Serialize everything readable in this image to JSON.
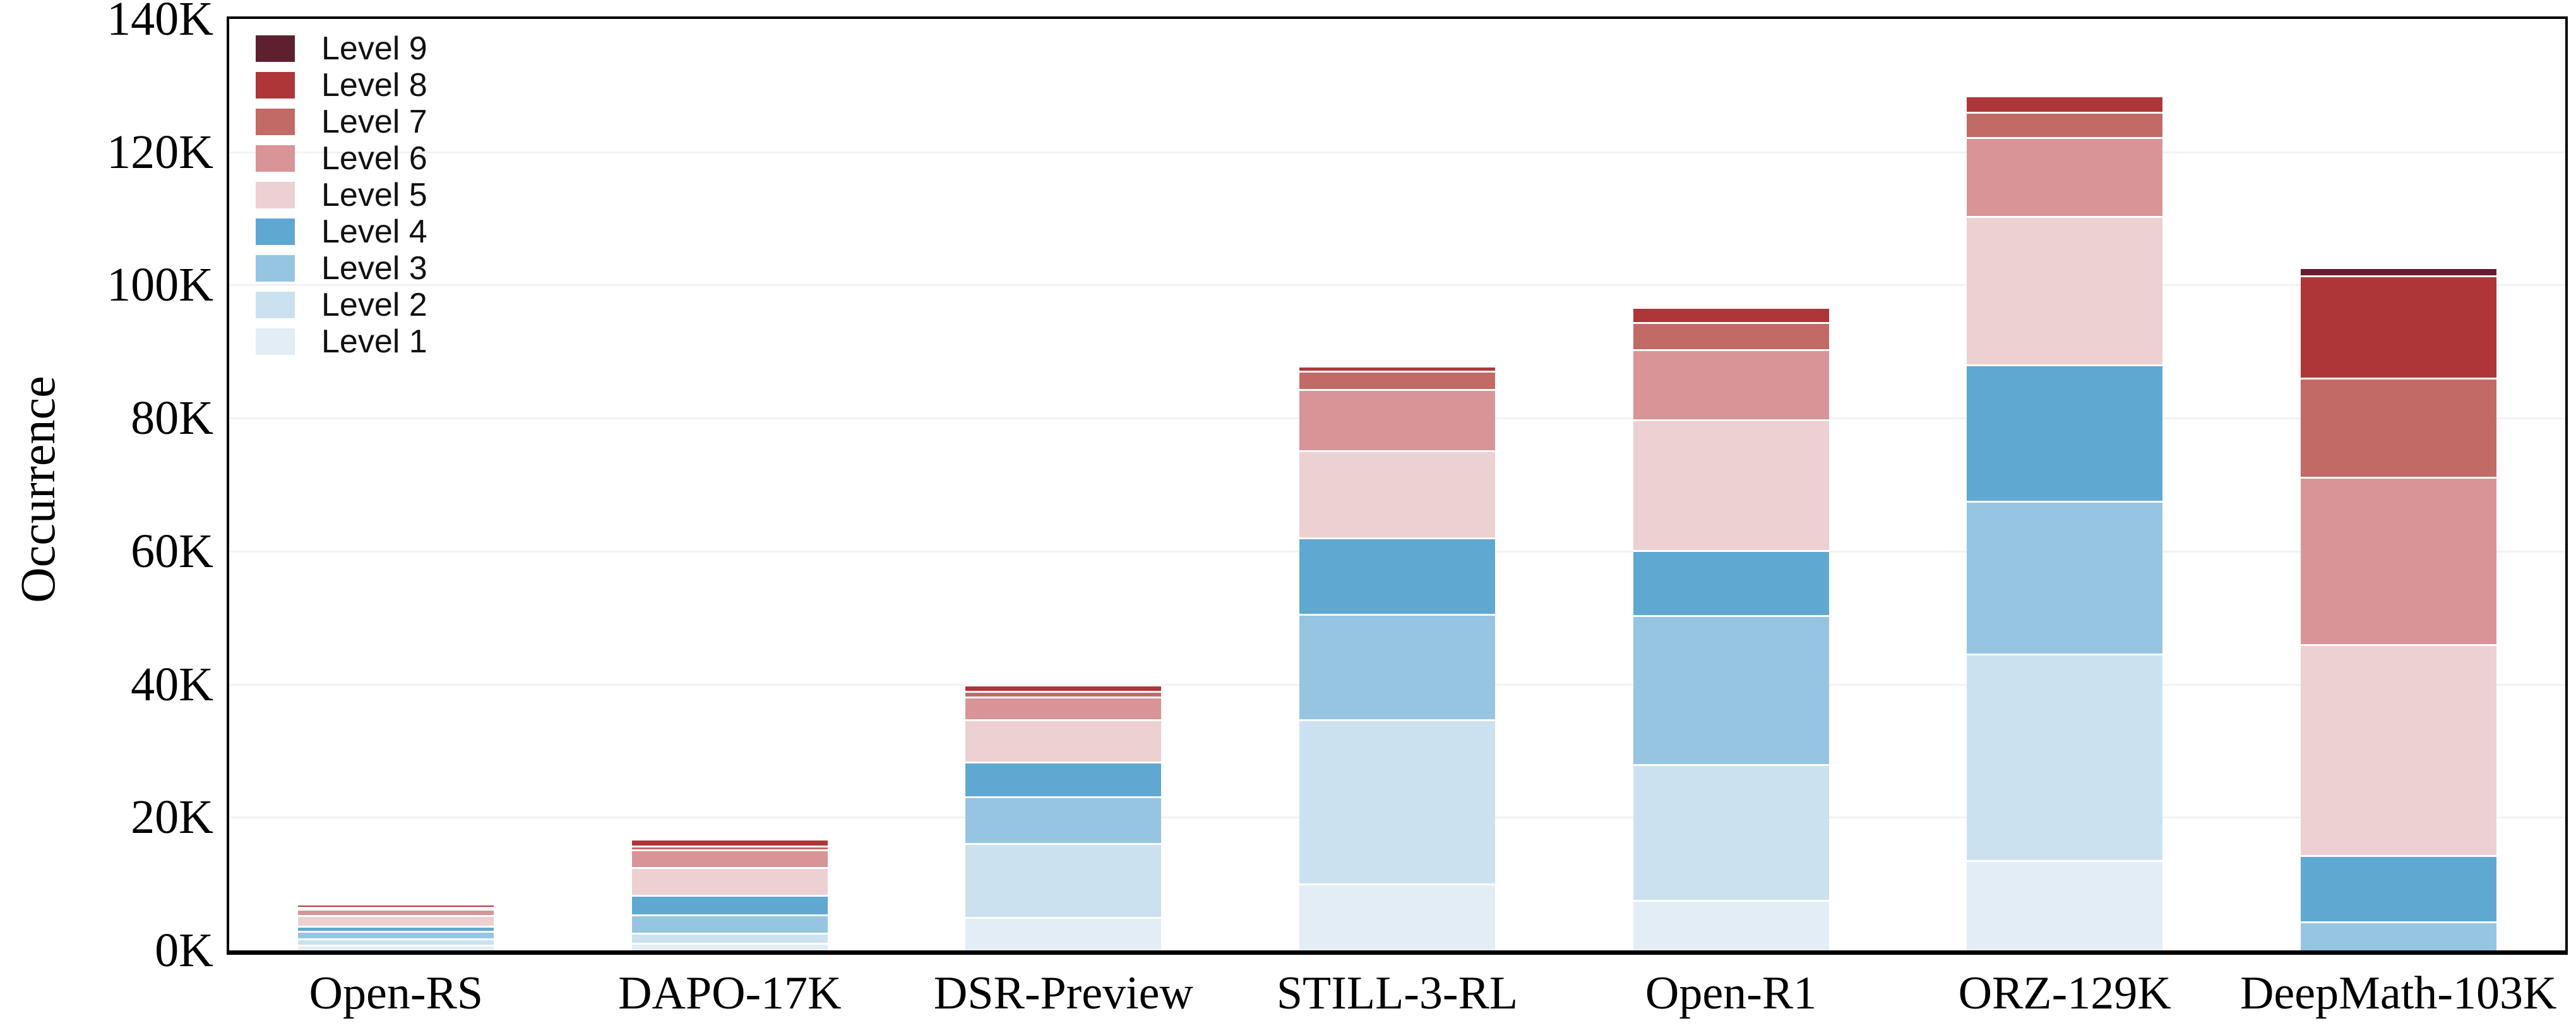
{
  "figure": {
    "ylabel": "Occurrence"
  },
  "chart_data": {
    "type": "bar",
    "stacked": true,
    "title": "",
    "xlabel": "",
    "ylabel": "Occurrence",
    "unit": "K",
    "ylim": [
      0,
      140
    ],
    "ytick_step": 20,
    "yticks": [
      "0K",
      "20K",
      "40K",
      "60K",
      "80K",
      "100K",
      "120K",
      "140K"
    ],
    "grid": "horizontal",
    "legend_position": "upper-left",
    "legend_order_top_to_bottom": [
      "Level 9",
      "Level 8",
      "Level 7",
      "Level 6",
      "Level 5",
      "Level 4",
      "Level 3",
      "Level 2",
      "Level 1"
    ],
    "categories": [
      "Open-RS",
      "DAPO-17K",
      "DSR-Preview",
      "STILL-3-RL",
      "Open-R1",
      "ORZ-129K",
      "DeepMath-103K"
    ],
    "series": [
      {
        "name": "Level 1",
        "color": "#e2edf6",
        "values": [
          0.9,
          1.1,
          5.0,
          10.1,
          7.6,
          13.6,
          0
        ]
      },
      {
        "name": "Level 2",
        "color": "#cbe1ef",
        "values": [
          0.9,
          1.6,
          11.1,
          24.6,
          20.4,
          31.0,
          0
        ]
      },
      {
        "name": "Level 3",
        "color": "#96c5e2",
        "values": [
          1.1,
          2.7,
          7.1,
          15.9,
          22.4,
          23.0,
          4.4
        ]
      },
      {
        "name": "Level 4",
        "color": "#5fa8d2",
        "values": [
          0.8,
          3.0,
          5.2,
          11.5,
          9.8,
          20.5,
          9.9
        ]
      },
      {
        "name": "Level 5",
        "color": "#ecd0d2",
        "values": [
          1.6,
          4.1,
          6.3,
          13.1,
          19.6,
          22.3,
          31.7
        ]
      },
      {
        "name": "Level 6",
        "color": "#d89496",
        "values": [
          1.0,
          2.7,
          3.5,
          9.2,
          10.6,
          11.9,
          25.2
        ]
      },
      {
        "name": "Level 7",
        "color": "#c16a66",
        "values": [
          0.3,
          0.6,
          0.8,
          2.7,
          4.0,
          3.8,
          14.9
        ]
      },
      {
        "name": "Level 8",
        "color": "#ae3638",
        "values": [
          0.4,
          1.0,
          1.0,
          0.8,
          2.3,
          2.4,
          15.4
        ]
      },
      {
        "name": "Level 9",
        "color": "#5e1f2f",
        "values": [
          0,
          0,
          0,
          0,
          0,
          0,
          1.2
        ]
      }
    ],
    "totals_in_K_approx": [
      7.0,
      16.8,
      40.0,
      87.9,
      96.7,
      128.5,
      102.7
    ]
  }
}
